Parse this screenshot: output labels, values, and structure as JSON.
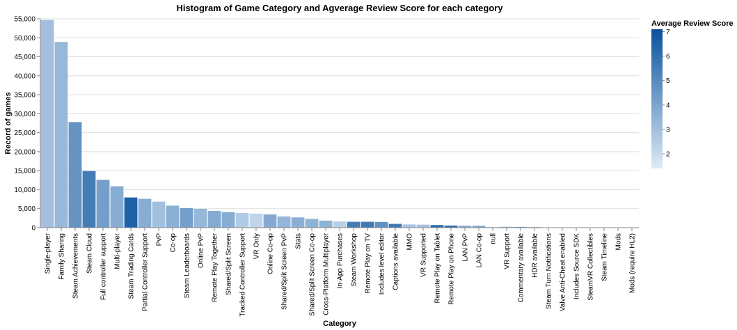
{
  "chart_data": {
    "type": "bar",
    "title": "Histogram of Game Category and Agverage Review Score for each category",
    "xlabel": "Category",
    "ylabel": "Record of games",
    "ylim": [
      0,
      55000
    ],
    "yticks": [
      0,
      5000,
      10000,
      15000,
      20000,
      25000,
      30000,
      35000,
      40000,
      45000,
      50000,
      55000
    ],
    "ytick_labels": [
      "0",
      "5,000",
      "10,000",
      "15,000",
      "20,000",
      "25,000",
      "30,000",
      "35,000",
      "40,000",
      "45,000",
      "50,000",
      "55,000"
    ],
    "grid": true,
    "legend": {
      "title": "Average Review Score",
      "placement": "top-right",
      "type": "gradient",
      "domain": [
        1.4,
        7.1
      ],
      "ticks": [
        2,
        3,
        4,
        5,
        6,
        7
      ],
      "tick_labels": [
        "2",
        "3",
        "4",
        "5",
        "6",
        "7"
      ],
      "color_low": "#deebf7",
      "color_high": "#08519c"
    },
    "categories": [
      "Single-player",
      "Family Sharing",
      "Steam Achievements",
      "Steam Cloud",
      "Full controller support",
      "Multi-player",
      "Steam Trading Cards",
      "Partial Controller Support",
      "PvP",
      "Co-op",
      "Steam Leaderboards",
      "Online PvP",
      "Remote Play Together",
      "Shared/Split Screen",
      "Tracked Controller Support",
      "VR Only",
      "Online Co-op",
      "Shared/Split Screen PvP",
      "Stats",
      "Shared/Split Screen Co-op",
      "Cross-Platform Multiplayer",
      "In-App Purchases",
      "Steam Workshop",
      "Remote Play on TV",
      "Includes level editor",
      "Captions available",
      "MMO",
      "VR Supported",
      "Remote Play on Tablet",
      "Remote Play on Phone",
      "LAN PvP",
      "LAN Co-op",
      "null",
      "VR Support",
      "Commentary available",
      "HDR available",
      "Steam Turn Notifications",
      "Valve Anti-Cheat enabled",
      "Includes Source SDK",
      "SteamVR Collectibles",
      "Steam Timeline",
      "Mods",
      "Mods (require HL2)"
    ],
    "series": [
      {
        "values": [
          54700,
          48900,
          27800,
          14900,
          12600,
          10900,
          7950,
          7600,
          6850,
          5800,
          5150,
          4950,
          4400,
          4100,
          3850,
          3700,
          3500,
          2950,
          2700,
          2300,
          1850,
          1650,
          1550,
          1550,
          1500,
          1000,
          850,
          800,
          700,
          550,
          500,
          480,
          200,
          230,
          200,
          160,
          80,
          60,
          40,
          35,
          30,
          20,
          10
        ],
        "color_values": [
          3.0,
          3.3,
          4.6,
          5.5,
          4.2,
          3.7,
          6.5,
          3.7,
          3.0,
          3.6,
          4.2,
          3.3,
          3.8,
          3.7,
          2.6,
          2.2,
          3.8,
          3.4,
          3.6,
          3.5,
          3.5,
          2.4,
          5.5,
          5.6,
          4.7,
          5.6,
          2.8,
          2.9,
          6.0,
          6.1,
          3.8,
          4.0,
          2.0,
          3.5,
          4.7,
          3.8,
          4.4,
          4.0,
          3.8,
          3.8,
          3.0,
          3.5,
          3.5
        ]
      }
    ]
  }
}
